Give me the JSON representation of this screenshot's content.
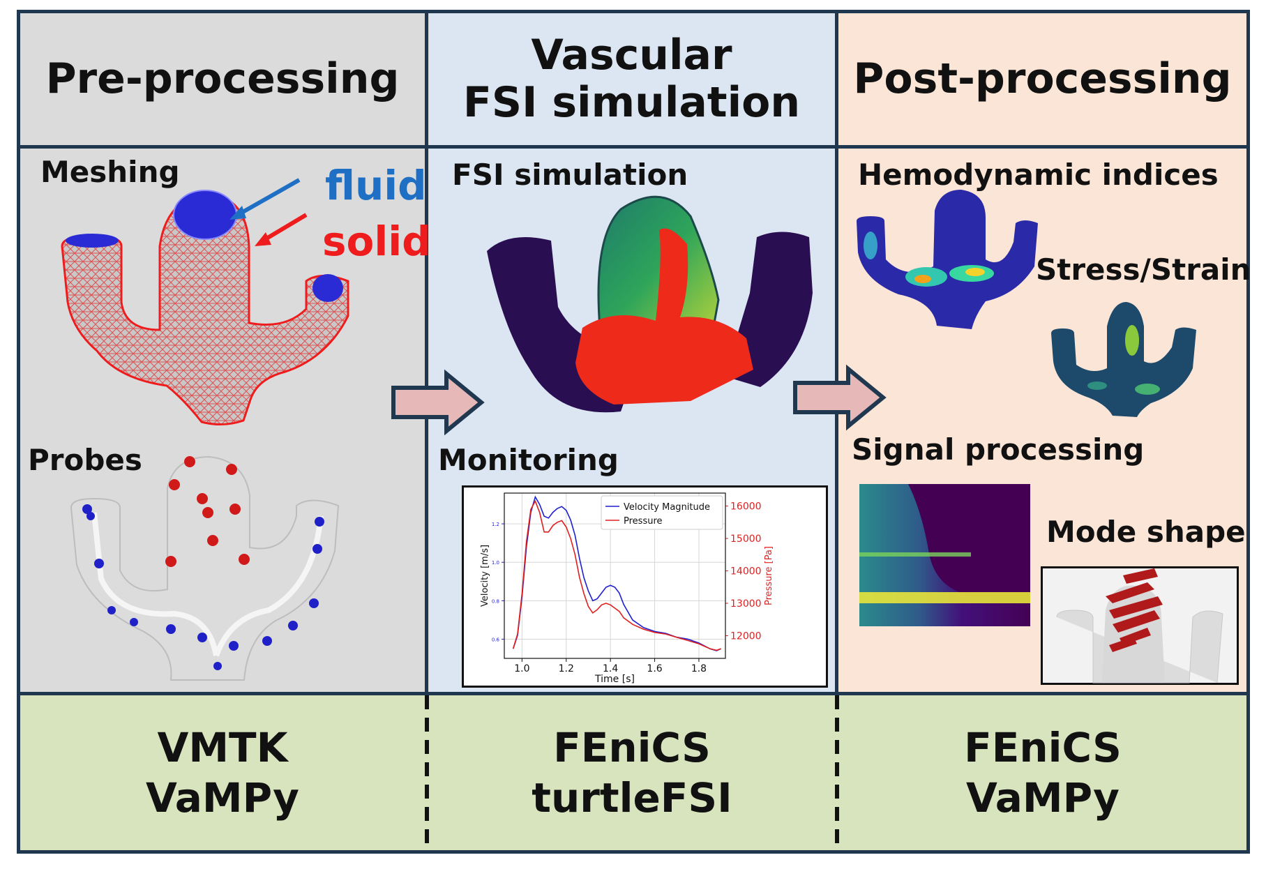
{
  "columns": {
    "pre": {
      "title": "Pre-processing",
      "tools": [
        "VMTK",
        "VaMPy"
      ]
    },
    "sim": {
      "title": "Vascular\nFSI simulation",
      "tools": [
        "FEniCS",
        "turtleFSI"
      ]
    },
    "post": {
      "title": "Post-processing",
      "tools": [
        "FEniCS",
        "VaMPy"
      ]
    }
  },
  "labels": {
    "meshing": "Meshing",
    "fluid": "fluid",
    "solid": "solid",
    "probes": "Probes",
    "fsi_simulation": "FSI simulation",
    "monitoring": "Monitoring",
    "hemodynamic": "Hemodynamic indices",
    "stress_strain": "Stress/Strain",
    "signal_processing": "Signal processing",
    "mode_shape": "Mode shape"
  },
  "colors": {
    "pre_bg": "#dbdbdb",
    "sim_bg": "#dce6f2",
    "post_bg": "#fbe5d6",
    "tools_bg": "#d8e4bd",
    "border": "#1f3850",
    "fluid": "#1f6fc5",
    "solid": "#ee1c1c",
    "arrow_fill": "#e6b9b8"
  },
  "chart_data": {
    "type": "line",
    "xlabel": "Time [s]",
    "ylabel": "Velocity [m/s]",
    "y2label": "Pressure [Pa]",
    "xlim": [
      0.92,
      1.92
    ],
    "ylim": [
      0.5,
      1.36
    ],
    "y2lim": [
      11300,
      16400
    ],
    "xticks": [
      "1.0",
      "1.2",
      "1.4",
      "1.6",
      "1.8"
    ],
    "yticks": [
      "0.6",
      "0.8",
      "1.0",
      "1.2"
    ],
    "y2ticks": [
      "12000",
      "13000",
      "14000",
      "15000",
      "16000"
    ],
    "grid": true,
    "legend": "top-right",
    "series": [
      {
        "name": "Velocity Magnitude",
        "color": "#1f1fd0",
        "axis": "left",
        "x": [
          0.96,
          0.98,
          1.0,
          1.02,
          1.04,
          1.06,
          1.08,
          1.1,
          1.12,
          1.14,
          1.16,
          1.18,
          1.2,
          1.22,
          1.24,
          1.26,
          1.28,
          1.3,
          1.32,
          1.34,
          1.36,
          1.38,
          1.4,
          1.42,
          1.44,
          1.46,
          1.5,
          1.55,
          1.6,
          1.65,
          1.7,
          1.75,
          1.8,
          1.85,
          1.88,
          1.9
        ],
        "y": [
          0.55,
          0.62,
          0.82,
          1.08,
          1.26,
          1.34,
          1.3,
          1.24,
          1.23,
          1.26,
          1.28,
          1.29,
          1.27,
          1.22,
          1.14,
          1.02,
          0.92,
          0.85,
          0.8,
          0.81,
          0.84,
          0.87,
          0.88,
          0.87,
          0.84,
          0.78,
          0.7,
          0.66,
          0.64,
          0.63,
          0.61,
          0.6,
          0.58,
          0.55,
          0.54,
          0.55
        ]
      },
      {
        "name": "Pressure",
        "color": "#e02020",
        "axis": "right",
        "x": [
          0.96,
          0.98,
          1.0,
          1.02,
          1.04,
          1.06,
          1.08,
          1.1,
          1.12,
          1.14,
          1.16,
          1.18,
          1.2,
          1.22,
          1.24,
          1.26,
          1.28,
          1.3,
          1.32,
          1.34,
          1.36,
          1.38,
          1.4,
          1.42,
          1.44,
          1.46,
          1.5,
          1.55,
          1.6,
          1.65,
          1.7,
          1.75,
          1.8,
          1.85,
          1.88,
          1.9
        ],
        "y": [
          11600,
          12050,
          13300,
          14900,
          15900,
          16150,
          15800,
          15200,
          15200,
          15400,
          15500,
          15550,
          15350,
          15000,
          14500,
          13800,
          13300,
          12900,
          12700,
          12800,
          12950,
          13000,
          12950,
          12850,
          12750,
          12550,
          12350,
          12200,
          12100,
          12050,
          11950,
          11850,
          11750,
          11600,
          11550,
          11600
        ]
      }
    ]
  }
}
